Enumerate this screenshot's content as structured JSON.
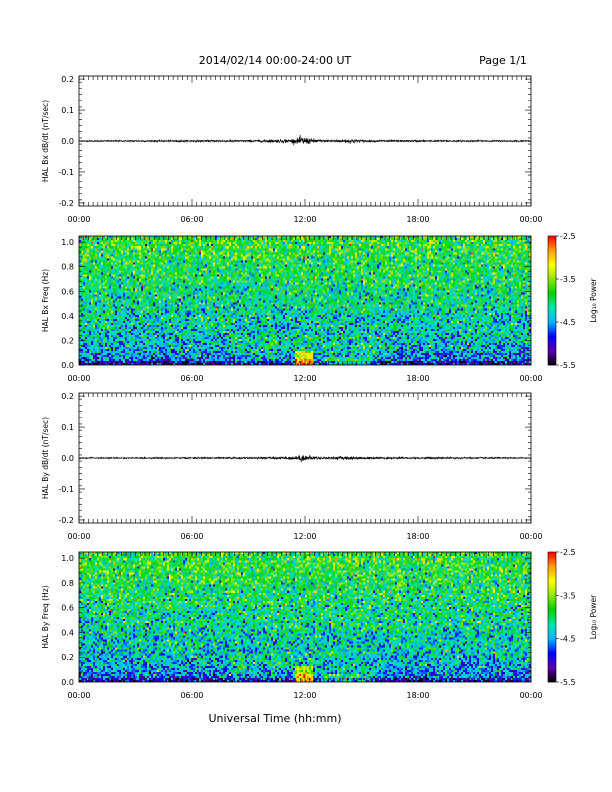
{
  "header": {
    "date_range": "2014/02/14  00:00-24:00 UT",
    "page": "Page 1/1"
  },
  "xaxis": {
    "label": "Universal Time (hh:mm)",
    "ticks": [
      "00:00",
      "06:00",
      "12:00",
      "18:00",
      "00:00"
    ],
    "range_hours": [
      0,
      24
    ]
  },
  "colorbar": {
    "label": "Log₁₀ Power",
    "ticks": [
      "-2.5",
      "-3.5",
      "-4.5",
      "-5.5"
    ],
    "range": [
      -5.5,
      -2.5
    ],
    "colormap": [
      "#000000",
      "#5a00b0",
      "#0000ff",
      "#00b4ff",
      "#00e6b0",
      "#00d200",
      "#8ce600",
      "#ffff00",
      "#ffa000",
      "#ff0000"
    ]
  },
  "chart_data": [
    {
      "type": "line",
      "ylabel": "HAL Bx dB/dt (nT/sec)",
      "yticks": [
        "0.2",
        "0.1",
        "0.0",
        "-0.1",
        "-0.2"
      ],
      "ylim": [
        -0.21,
        0.21
      ],
      "x_hours": [
        0,
        9.5,
        11.5,
        11.8,
        12.1,
        12.4,
        13.0,
        14.0,
        14.5,
        15.0,
        24
      ],
      "amplitude": [
        0.001,
        0.002,
        0.004,
        0.008,
        0.006,
        0.004,
        0.002,
        0.003,
        0.004,
        0.002,
        0.001
      ]
    },
    {
      "type": "heatmap",
      "ylabel": "HAL Bx Freq (Hz)",
      "yticks": [
        "1.0",
        "0.8",
        "0.6",
        "0.4",
        "0.2",
        "0.0"
      ],
      "ylim": [
        0,
        1.05
      ],
      "z_range": [
        -5.5,
        -2.5
      ],
      "enhancement_hours": [
        11.5,
        12.4
      ],
      "enhancement_freq_max": 0.05,
      "enhancement_level": -2.8
    },
    {
      "type": "line",
      "ylabel": "HAL By dB/dt (nT/sec)",
      "yticks": [
        "0.2",
        "0.1",
        "0.0",
        "-0.1",
        "-0.2"
      ],
      "ylim": [
        -0.21,
        0.21
      ],
      "x_hours": [
        0,
        9.5,
        11.5,
        11.8,
        12.1,
        12.4,
        13.0,
        14.0,
        14.5,
        15.0,
        24
      ],
      "amplitude": [
        0.001,
        0.0015,
        0.003,
        0.006,
        0.005,
        0.003,
        0.002,
        0.003,
        0.003,
        0.002,
        0.001
      ]
    },
    {
      "type": "heatmap",
      "ylabel": "HAL By Freq (Hz)",
      "yticks": [
        "1.0",
        "0.8",
        "0.6",
        "0.4",
        "0.2",
        "0.0"
      ],
      "ylim": [
        0,
        1.05
      ],
      "z_range": [
        -5.5,
        -2.5
      ],
      "enhancement_hours": [
        11.5,
        12.4
      ],
      "enhancement_freq_max": 0.06,
      "enhancement_level": -3.0
    }
  ]
}
